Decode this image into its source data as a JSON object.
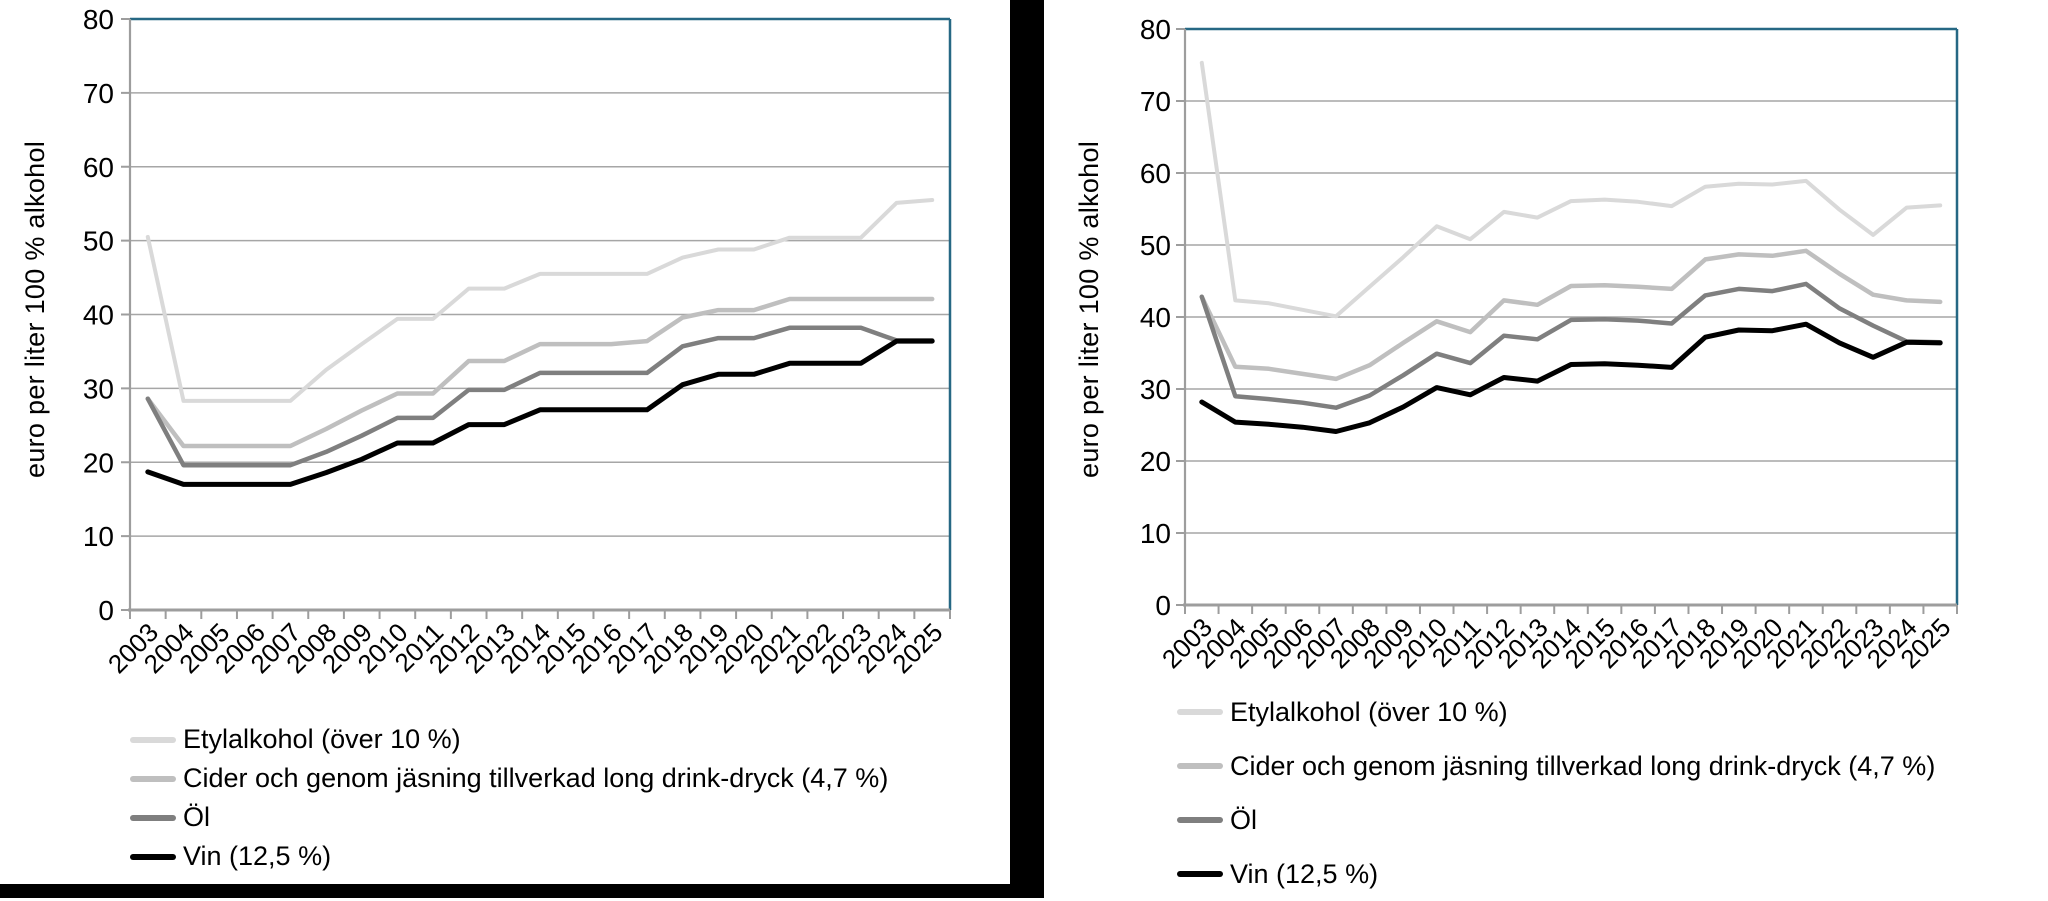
{
  "page": {
    "background": "#ffffff"
  },
  "chart_data": [
    {
      "type": "line",
      "title": "",
      "ylabel": "euro per liter 100 % alkohol",
      "ylim": [
        0,
        80
      ],
      "ytick_step": 10,
      "grid": true,
      "legend_position": "bottom-left",
      "border_color": "#266884",
      "grid_color": "#a6a6a6",
      "axis_color": "#9d9d9d",
      "x": [
        2003,
        2004,
        2005,
        2006,
        2007,
        2008,
        2009,
        2010,
        2011,
        2012,
        2013,
        2014,
        2015,
        2016,
        2017,
        2018,
        2019,
        2020,
        2021,
        2022,
        2023,
        2024,
        2025
      ],
      "series": [
        {
          "name": "Etylalkohol (över 10 %)",
          "color": "#d9d9d9",
          "width": 4,
          "values": [
            50.5,
            28.3,
            28.3,
            28.3,
            28.3,
            32.5,
            36.0,
            39.4,
            39.4,
            43.5,
            43.5,
            45.5,
            45.5,
            45.5,
            45.5,
            47.7,
            48.8,
            48.8,
            50.4,
            50.4,
            50.4,
            55.1,
            55.5
          ]
        },
        {
          "name": "Cider och genom jäsning tillverkad long drink-dryck (4,7 %)",
          "color": "#bfbfbf",
          "width": 4.5,
          "values": [
            28.6,
            22.2,
            22.2,
            22.2,
            22.2,
            24.5,
            27.0,
            29.3,
            29.3,
            33.7,
            33.7,
            36.0,
            36.0,
            36.0,
            36.4,
            39.6,
            40.6,
            40.6,
            42.1,
            42.1,
            42.1,
            42.1,
            42.1
          ]
        },
        {
          "name": "Öl",
          "color": "#7f7f7f",
          "width": 4.5,
          "values": [
            28.6,
            19.6,
            19.6,
            19.6,
            19.6,
            21.4,
            23.6,
            26.0,
            26.0,
            29.8,
            29.8,
            32.1,
            32.1,
            32.1,
            32.1,
            35.7,
            36.8,
            36.8,
            38.2,
            38.2,
            38.2,
            36.5,
            36.5
          ]
        },
        {
          "name": "Vin (12,5 %)",
          "color": "#000000",
          "width": 5,
          "values": [
            18.7,
            17.0,
            17.0,
            17.0,
            17.0,
            18.6,
            20.4,
            22.6,
            22.6,
            25.1,
            25.1,
            27.1,
            27.1,
            27.1,
            27.1,
            30.5,
            31.9,
            31.9,
            33.4,
            33.4,
            33.4,
            36.4,
            36.4
          ]
        }
      ]
    },
    {
      "type": "line",
      "title": "",
      "ylabel": "euro per liter 100 % alkohol",
      "ylim": [
        0,
        80
      ],
      "ytick_step": 10,
      "grid": true,
      "legend_position": "bottom-left",
      "border_color": "#266884",
      "grid_color": "#a6a6a6",
      "axis_color": "#9d9d9d",
      "x": [
        2003,
        2004,
        2005,
        2006,
        2007,
        2008,
        2009,
        2010,
        2011,
        2012,
        2013,
        2014,
        2015,
        2016,
        2017,
        2018,
        2019,
        2020,
        2021,
        2022,
        2023,
        2024,
        2025
      ],
      "series": [
        {
          "name": "Etylalkohol (över 10 %)",
          "color": "#d9d9d9",
          "width": 4,
          "values": [
            75.3,
            42.3,
            41.9,
            41.0,
            40.1,
            44.2,
            48.3,
            52.6,
            50.8,
            54.6,
            53.8,
            56.1,
            56.3,
            56.0,
            55.4,
            58.1,
            58.5,
            58.4,
            58.9,
            54.9,
            51.4,
            55.2,
            55.5
          ]
        },
        {
          "name": "Cider och genom jäsning tillverkad long drink-dryck (4,7 %)",
          "color": "#bfbfbf",
          "width": 4.5,
          "values": [
            42.8,
            33.1,
            32.8,
            32.1,
            31.4,
            33.3,
            36.4,
            39.4,
            37.9,
            42.3,
            41.7,
            44.3,
            44.4,
            44.2,
            43.9,
            48.0,
            48.7,
            48.5,
            49.2,
            46.0,
            43.1,
            42.3,
            42.1
          ]
        },
        {
          "name": "Öl",
          "color": "#7f7f7f",
          "width": 4.5,
          "values": [
            42.8,
            29.0,
            28.6,
            28.1,
            27.4,
            29.1,
            31.9,
            34.9,
            33.6,
            37.4,
            36.9,
            39.6,
            39.7,
            39.5,
            39.1,
            43.0,
            43.9,
            43.6,
            44.6,
            41.2,
            38.8,
            36.6,
            36.5
          ]
        },
        {
          "name": "Vin (12,5 %)",
          "color": "#000000",
          "width": 5,
          "values": [
            28.2,
            25.4,
            25.1,
            24.7,
            24.1,
            25.3,
            27.5,
            30.2,
            29.2,
            31.6,
            31.1,
            33.4,
            33.5,
            33.3,
            33.0,
            37.2,
            38.2,
            38.1,
            39.0,
            36.4,
            34.4,
            36.5,
            36.4
          ]
        }
      ]
    }
  ]
}
